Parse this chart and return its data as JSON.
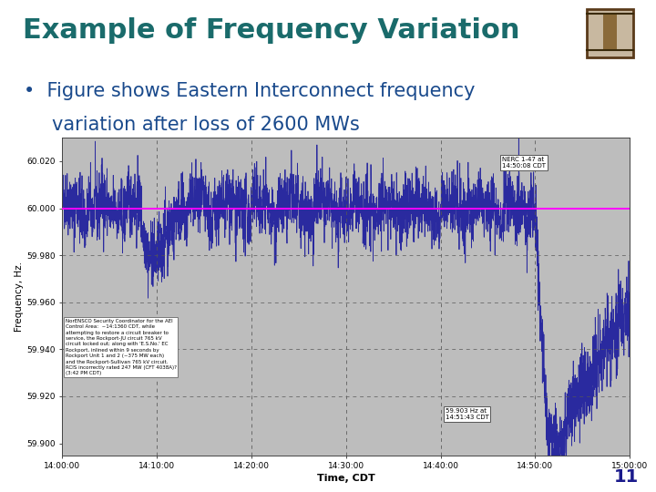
{
  "title": "Example of Frequency Variation",
  "title_color": "#1a6b6b",
  "title_fontsize": 22,
  "header_bar_color": "#1a1a8c",
  "bullet_text_line1": "Figure shows Eastern Interconnect frequency",
  "bullet_text_line2": "variation after loss of 2600 MWs",
  "bullet_color": "#1a4a8c",
  "bullet_fontsize": 15,
  "slide_bg": "#ffffff",
  "plot_bg": "#bdbdbd",
  "y_labels": [
    "60.020",
    "60.000",
    "59.980",
    "59.960",
    "59.940",
    "59.920",
    "59.900"
  ],
  "y_values": [
    60.02,
    60.0,
    59.98,
    59.96,
    59.94,
    59.92,
    59.9
  ],
  "x_labels": [
    "14:00:00",
    "14:10:00",
    "14:20:00",
    "14:30:00",
    "14:40:00",
    "14:50:00",
    "15:00:00"
  ],
  "xlabel": "Time, CDT",
  "ylabel": "Frequency, Hz.",
  "line_color": "#1a1a9c",
  "nominal_line_color": "#ff00ff",
  "annotation_box1_text": "NERC 1-47 at\n14:50:08 CDT",
  "annotation_box2_text": "59.903 Hz at\n14:51:43 CDT",
  "info_text": "NorENSCO Security Coordinator for the AEI\nControl Area:  ~14:1360 CDT, while\nattempting to restore a circuit breaker to\nservice, the Rockport-JU circuit 765 kV\ncircuit locked out; along with 'E.S.No.' EC\nRockport, inlined within 9 seconds by\nRockport Unit 1 and 2 (~375 MW each)\nand the Rockport-Sullivan 765 kV circuit.\nRCIS incorrectly rated 247 MW (CFT 4038A)?\n(3:42 PM CDT)",
  "slide_number": "11",
  "page_num_color": "#1a1a8c",
  "logo_color": "#5a3a1a",
  "logo_bg": "#c8b8a0"
}
